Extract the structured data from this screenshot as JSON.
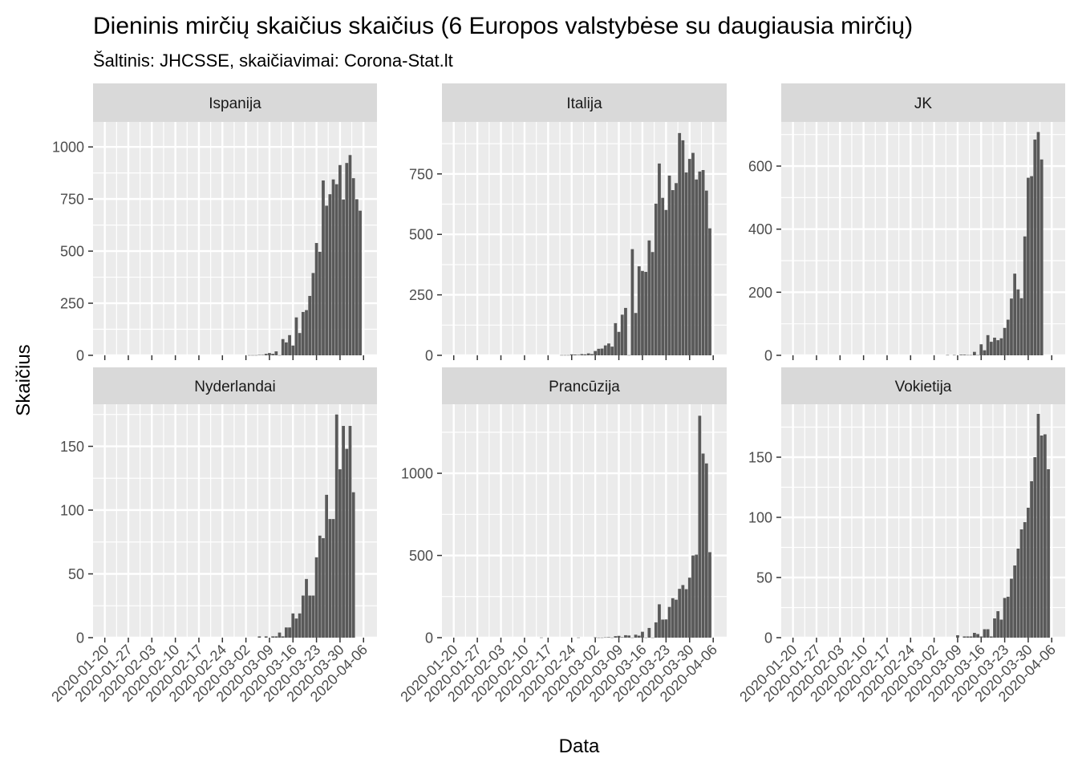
{
  "chart_data": {
    "type": "bar",
    "title": "Dieninis mirčių skaičius skaičius (6 Europos valstybėse su daugiausia mirčių)",
    "subtitle": "Šaltinis: JHCSSE, skaičiavimai: Corona-Stat.lt",
    "xlabel": "Data",
    "ylabel": "Skaičius",
    "x_ticks": [
      "2020-01-20",
      "2020-01-27",
      "2020-02-03",
      "2020-02-10",
      "2020-02-17",
      "2020-02-24",
      "2020-03-02",
      "2020-03-09",
      "2020-03-16",
      "2020-03-23",
      "2020-03-30",
      "2020-04-06"
    ],
    "first_date": "2020-01-20",
    "facets": [
      {
        "name": "Ispanija",
        "ylim": [
          0,
          1120
        ],
        "y_ticks": [
          0,
          250,
          500,
          750,
          1000
        ],
        "y_tick_labels": [
          "0",
          "250",
          "500",
          "750",
          "1000"
        ],
        "points": [
          [
            "2020-03-03",
            1
          ],
          [
            "2020-03-04",
            1
          ],
          [
            "2020-03-05",
            1
          ],
          [
            "2020-03-06",
            2
          ],
          [
            "2020-03-07",
            2
          ],
          [
            "2020-03-08",
            7
          ],
          [
            "2020-03-09",
            11
          ],
          [
            "2020-03-10",
            7
          ],
          [
            "2020-03-11",
            19
          ],
          [
            "2020-03-12",
            1
          ],
          [
            "2020-03-13",
            78
          ],
          [
            "2020-03-14",
            62
          ],
          [
            "2020-03-15",
            97
          ],
          [
            "2020-03-16",
            47
          ],
          [
            "2020-03-17",
            182
          ],
          [
            "2020-03-18",
            107
          ],
          [
            "2020-03-19",
            208
          ],
          [
            "2020-03-20",
            217
          ],
          [
            "2020-03-21",
            285
          ],
          [
            "2020-03-22",
            395
          ],
          [
            "2020-03-23",
            539
          ],
          [
            "2020-03-24",
            497
          ],
          [
            "2020-03-25",
            839
          ],
          [
            "2020-03-26",
            718
          ],
          [
            "2020-03-27",
            773
          ],
          [
            "2020-03-28",
            844
          ],
          [
            "2020-03-29",
            821
          ],
          [
            "2020-03-30",
            913
          ],
          [
            "2020-03-31",
            748
          ],
          [
            "2020-04-01",
            923
          ],
          [
            "2020-04-02",
            961
          ],
          [
            "2020-04-03",
            850
          ],
          [
            "2020-04-04",
            749
          ],
          [
            "2020-04-05",
            694
          ]
        ]
      },
      {
        "name": "Italija",
        "ylim": [
          0,
          965
        ],
        "y_ticks": [
          0,
          250,
          500,
          750
        ],
        "y_tick_labels": [
          "0",
          "250",
          "500",
          "750"
        ],
        "points": [
          [
            "2020-02-21",
            1
          ],
          [
            "2020-02-22",
            1
          ],
          [
            "2020-02-23",
            1
          ],
          [
            "2020-02-24",
            4
          ],
          [
            "2020-02-25",
            3
          ],
          [
            "2020-02-26",
            2
          ],
          [
            "2020-02-27",
            5
          ],
          [
            "2020-02-28",
            4
          ],
          [
            "2020-02-29",
            8
          ],
          [
            "2020-03-01",
            5
          ],
          [
            "2020-03-02",
            18
          ],
          [
            "2020-03-03",
            27
          ],
          [
            "2020-03-04",
            28
          ],
          [
            "2020-03-05",
            41
          ],
          [
            "2020-03-06",
            49
          ],
          [
            "2020-03-07",
            36
          ],
          [
            "2020-03-08",
            133
          ],
          [
            "2020-03-09",
            97
          ],
          [
            "2020-03-10",
            168
          ],
          [
            "2020-03-11",
            196
          ],
          [
            "2020-03-12",
            1
          ],
          [
            "2020-03-13",
            439
          ],
          [
            "2020-03-14",
            175
          ],
          [
            "2020-03-15",
            368
          ],
          [
            "2020-03-16",
            349
          ],
          [
            "2020-03-17",
            345
          ],
          [
            "2020-03-18",
            475
          ],
          [
            "2020-03-19",
            427
          ],
          [
            "2020-03-20",
            627
          ],
          [
            "2020-03-21",
            793
          ],
          [
            "2020-03-22",
            651
          ],
          [
            "2020-03-23",
            601
          ],
          [
            "2020-03-24",
            743
          ],
          [
            "2020-03-25",
            683
          ],
          [
            "2020-03-26",
            712
          ],
          [
            "2020-03-27",
            919
          ],
          [
            "2020-03-28",
            889
          ],
          [
            "2020-03-29",
            756
          ],
          [
            "2020-03-30",
            812
          ],
          [
            "2020-03-31",
            837
          ],
          [
            "2020-04-01",
            727
          ],
          [
            "2020-04-02",
            760
          ],
          [
            "2020-04-03",
            766
          ],
          [
            "2020-04-04",
            681
          ],
          [
            "2020-04-05",
            525
          ]
        ]
      },
      {
        "name": "JK",
        "ylim": [
          0,
          740
        ],
        "y_ticks": [
          0,
          200,
          400,
          600
        ],
        "y_tick_labels": [
          "0",
          "200",
          "400",
          "600"
        ],
        "points": [
          [
            "2020-03-06",
            1
          ],
          [
            "2020-03-08",
            1
          ],
          [
            "2020-03-10",
            2
          ],
          [
            "2020-03-11",
            2
          ],
          [
            "2020-03-12",
            1
          ],
          [
            "2020-03-13",
            1
          ],
          [
            "2020-03-14",
            11
          ],
          [
            "2020-03-15",
            1
          ],
          [
            "2020-03-16",
            35
          ],
          [
            "2020-03-17",
            16
          ],
          [
            "2020-03-18",
            64
          ],
          [
            "2020-03-19",
            43
          ],
          [
            "2020-03-20",
            56
          ],
          [
            "2020-03-21",
            48
          ],
          [
            "2020-03-22",
            54
          ],
          [
            "2020-03-23",
            87
          ],
          [
            "2020-03-24",
            113
          ],
          [
            "2020-03-25",
            180
          ],
          [
            "2020-03-26",
            259
          ],
          [
            "2020-03-27",
            209
          ],
          [
            "2020-03-28",
            181
          ],
          [
            "2020-03-29",
            377
          ],
          [
            "2020-03-30",
            563
          ],
          [
            "2020-03-31",
            568
          ],
          [
            "2020-04-01",
            684
          ],
          [
            "2020-04-02",
            708
          ],
          [
            "2020-04-03",
            621
          ]
        ]
      },
      {
        "name": "Nyderlandai",
        "ylim": [
          0,
          183
        ],
        "y_ticks": [
          0,
          50,
          100,
          150
        ],
        "y_tick_labels": [
          "0",
          "50",
          "100",
          "150"
        ],
        "points": [
          [
            "2020-03-06",
            1
          ],
          [
            "2020-03-08",
            1
          ],
          [
            "2020-03-10",
            1
          ],
          [
            "2020-03-11",
            1
          ],
          [
            "2020-03-12",
            4
          ],
          [
            "2020-03-13",
            1
          ],
          [
            "2020-03-14",
            8
          ],
          [
            "2020-03-15",
            8
          ],
          [
            "2020-03-16",
            19
          ],
          [
            "2020-03-17",
            15
          ],
          [
            "2020-03-18",
            19
          ],
          [
            "2020-03-19",
            33
          ],
          [
            "2020-03-20",
            46
          ],
          [
            "2020-03-21",
            33
          ],
          [
            "2020-03-22",
            33
          ],
          [
            "2020-03-23",
            63
          ],
          [
            "2020-03-24",
            80
          ],
          [
            "2020-03-25",
            78
          ],
          [
            "2020-03-26",
            112
          ],
          [
            "2020-03-27",
            93
          ],
          [
            "2020-03-28",
            93
          ],
          [
            "2020-03-29",
            175
          ],
          [
            "2020-03-30",
            132
          ],
          [
            "2020-03-31",
            166
          ],
          [
            "2020-04-01",
            148
          ],
          [
            "2020-04-02",
            166
          ],
          [
            "2020-04-03",
            114
          ]
        ]
      },
      {
        "name": "Prancūzija",
        "ylim": [
          0,
          1420
        ],
        "y_ticks": [
          0,
          500,
          1000
        ],
        "y_tick_labels": [
          "0",
          "500",
          "1000"
        ],
        "points": [
          [
            "2020-02-15",
            1
          ],
          [
            "2020-02-26",
            1
          ],
          [
            "2020-03-02",
            2
          ],
          [
            "2020-03-03",
            1
          ],
          [
            "2020-03-04",
            1
          ],
          [
            "2020-03-05",
            2
          ],
          [
            "2020-03-06",
            3
          ],
          [
            "2020-03-07",
            1
          ],
          [
            "2020-03-08",
            9
          ],
          [
            "2020-03-09",
            11
          ],
          [
            "2020-03-10",
            3
          ],
          [
            "2020-03-11",
            15
          ],
          [
            "2020-03-12",
            13
          ],
          [
            "2020-03-13",
            1
          ],
          [
            "2020-03-14",
            18
          ],
          [
            "2020-03-15",
            12
          ],
          [
            "2020-03-16",
            36
          ],
          [
            "2020-03-17",
            1
          ],
          [
            "2020-03-18",
            59
          ],
          [
            "2020-03-19",
            1
          ],
          [
            "2020-03-20",
            93
          ],
          [
            "2020-03-21",
            203
          ],
          [
            "2020-03-22",
            110
          ],
          [
            "2020-03-23",
            111
          ],
          [
            "2020-03-24",
            187
          ],
          [
            "2020-03-25",
            240
          ],
          [
            "2020-03-26",
            231
          ],
          [
            "2020-03-27",
            297
          ],
          [
            "2020-03-28",
            320
          ],
          [
            "2020-03-29",
            295
          ],
          [
            "2020-03-30",
            365
          ],
          [
            "2020-03-31",
            500
          ],
          [
            "2020-04-01",
            505
          ],
          [
            "2020-04-02",
            1350
          ],
          [
            "2020-04-03",
            1120
          ],
          [
            "2020-04-04",
            1060
          ],
          [
            "2020-04-05",
            520
          ]
        ]
      },
      {
        "name": "Vokietija",
        "ylim": [
          0,
          194
        ],
        "y_ticks": [
          0,
          50,
          100,
          150
        ],
        "y_tick_labels": [
          "0",
          "50",
          "100",
          "150"
        ],
        "points": [
          [
            "2020-03-09",
            2
          ],
          [
            "2020-03-11",
            1
          ],
          [
            "2020-03-12",
            1
          ],
          [
            "2020-03-13",
            1
          ],
          [
            "2020-03-14",
            4
          ],
          [
            "2020-03-15",
            3
          ],
          [
            "2020-03-16",
            1
          ],
          [
            "2020-03-17",
            7
          ],
          [
            "2020-03-18",
            7
          ],
          [
            "2020-03-19",
            1
          ],
          [
            "2020-03-20",
            16
          ],
          [
            "2020-03-21",
            22
          ],
          [
            "2020-03-22",
            15
          ],
          [
            "2020-03-23",
            33
          ],
          [
            "2020-03-24",
            34
          ],
          [
            "2020-03-25",
            49
          ],
          [
            "2020-03-26",
            60
          ],
          [
            "2020-03-27",
            74
          ],
          [
            "2020-03-28",
            90
          ],
          [
            "2020-03-29",
            96
          ],
          [
            "2020-03-30",
            108
          ],
          [
            "2020-03-31",
            130
          ],
          [
            "2020-04-01",
            150
          ],
          [
            "2020-04-02",
            186
          ],
          [
            "2020-04-03",
            168
          ],
          [
            "2020-04-04",
            169
          ],
          [
            "2020-04-05",
            140
          ]
        ]
      }
    ]
  }
}
